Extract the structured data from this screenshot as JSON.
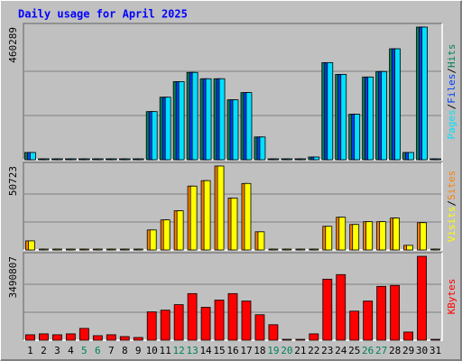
{
  "title": "Daily usage for April 2025",
  "legend_separator": "/",
  "chart_data": [
    {
      "type": "bar",
      "series": [
        {
          "name": "Hits",
          "color": "#00805c",
          "values": [
            25200,
            1500,
            1500,
            1500,
            1500,
            1500,
            1500,
            1500,
            1500,
            167000,
            217000,
            271000,
            303000,
            281000,
            281000,
            208000,
            233000,
            79000,
            1500,
            1500,
            1500,
            9500,
            337000,
            296000,
            158000,
            287000,
            306000,
            385000,
            25200,
            460289,
            0
          ]
        },
        {
          "name": "Files",
          "color": "#0040ff",
          "values": [
            25200,
            1500,
            1500,
            1500,
            1500,
            1500,
            1500,
            1500,
            1500,
            167000,
            217000,
            271000,
            303000,
            281000,
            281000,
            208000,
            233000,
            79000,
            1500,
            1500,
            1500,
            9500,
            337000,
            296000,
            158000,
            287000,
            306000,
            385000,
            25200,
            460289,
            0
          ]
        },
        {
          "name": "Pages",
          "color": "#00e0ff",
          "values": [
            25200,
            1500,
            1500,
            1500,
            1500,
            1500,
            1500,
            1500,
            1500,
            167000,
            217000,
            271000,
            303000,
            281000,
            281000,
            208000,
            233000,
            79000,
            1500,
            1500,
            1500,
            9500,
            337000,
            296000,
            158000,
            287000,
            306000,
            385000,
            25200,
            460289,
            0
          ]
        }
      ],
      "ylim": [
        0,
        460289
      ],
      "yticks": [
        460289
      ],
      "grid": true
    },
    {
      "type": "bar",
      "series": [
        {
          "name": "Sites",
          "color": "#ff8000",
          "values": [
            5500,
            300,
            300,
            300,
            300,
            300,
            300,
            300,
            300,
            12100,
            18200,
            23700,
            38600,
            41900,
            50723,
            31400,
            40200,
            11000,
            300,
            300,
            300,
            300,
            14300,
            19800,
            15400,
            17100,
            17100,
            19300,
            2800,
            16500,
            0
          ]
        },
        {
          "name": "Visits",
          "color": "#ffff00",
          "values": [
            5500,
            300,
            300,
            300,
            300,
            300,
            300,
            300,
            300,
            12100,
            18200,
            23700,
            38600,
            41900,
            50723,
            31400,
            40200,
            11000,
            300,
            300,
            300,
            300,
            14300,
            19800,
            15400,
            17100,
            17100,
            19300,
            2800,
            16500,
            0
          ]
        }
      ],
      "ylim": [
        0,
        50723
      ],
      "yticks": [
        50723
      ],
      "grid": true
    },
    {
      "type": "bar",
      "categories": [
        1,
        2,
        3,
        4,
        5,
        6,
        7,
        8,
        9,
        10,
        11,
        12,
        13,
        14,
        15,
        16,
        17,
        18,
        19,
        20,
        21,
        22,
        23,
        24,
        25,
        26,
        27,
        28,
        29,
        30,
        31
      ],
      "weekend_days": [
        5,
        6,
        12,
        13,
        19,
        20,
        26,
        27
      ],
      "weekend_color": "#00805c",
      "series": [
        {
          "name": "KBytes",
          "color": "#ff0000",
          "values": [
            228000,
            266000,
            228000,
            266000,
            493000,
            190000,
            228000,
            152000,
            114000,
            1180000,
            1250000,
            1480000,
            1940000,
            1370000,
            1670000,
            1940000,
            1630000,
            1060000,
            645000,
            38000,
            38000,
            266000,
            2540000,
            2730000,
            1210000,
            1630000,
            2240000,
            2280000,
            341000,
            3490807,
            0
          ]
        }
      ],
      "ylim": [
        0,
        3490807
      ],
      "yticks": [
        3490807
      ],
      "grid": true
    }
  ]
}
